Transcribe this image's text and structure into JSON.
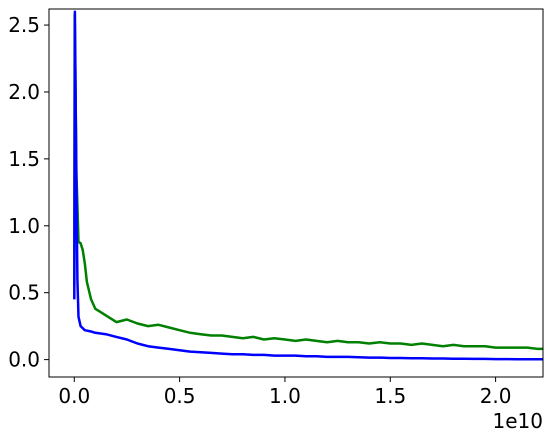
{
  "chart_data": {
    "type": "line",
    "title": "",
    "xlabel": "",
    "ylabel": "",
    "x_offset_text": "1e10",
    "xlim": [
      -0.12,
      2.225
    ],
    "ylim": [
      -0.13,
      2.62
    ],
    "x_ticks": [
      0.0,
      0.5,
      1.0,
      1.5,
      2.0
    ],
    "x_tick_labels": [
      "0.0",
      "0.5",
      "1.0",
      "1.5",
      "2.0"
    ],
    "y_ticks": [
      0.0,
      0.5,
      1.0,
      1.5,
      2.0,
      2.5
    ],
    "y_tick_labels": [
      "0.0",
      "0.5",
      "1.0",
      "1.5",
      "2.0",
      "2.5"
    ],
    "grid": false,
    "legend": "none",
    "series": [
      {
        "color": "#008000",
        "points": [
          [
            0.0,
            0.55
          ],
          [
            0.002,
            2.58
          ],
          [
            0.01,
            1.4
          ],
          [
            0.02,
            0.88
          ],
          [
            0.03,
            0.87
          ],
          [
            0.04,
            0.82
          ],
          [
            0.05,
            0.72
          ],
          [
            0.06,
            0.58
          ],
          [
            0.08,
            0.45
          ],
          [
            0.1,
            0.38
          ],
          [
            0.12,
            0.36
          ],
          [
            0.15,
            0.33
          ],
          [
            0.2,
            0.28
          ],
          [
            0.25,
            0.3
          ],
          [
            0.3,
            0.27
          ],
          [
            0.35,
            0.25
          ],
          [
            0.4,
            0.26
          ],
          [
            0.45,
            0.24
          ],
          [
            0.5,
            0.22
          ],
          [
            0.55,
            0.2
          ],
          [
            0.6,
            0.19
          ],
          [
            0.65,
            0.18
          ],
          [
            0.7,
            0.18
          ],
          [
            0.75,
            0.17
          ],
          [
            0.8,
            0.16
          ],
          [
            0.85,
            0.17
          ],
          [
            0.9,
            0.15
          ],
          [
            0.95,
            0.16
          ],
          [
            1.0,
            0.15
          ],
          [
            1.05,
            0.14
          ],
          [
            1.1,
            0.15
          ],
          [
            1.15,
            0.14
          ],
          [
            1.2,
            0.13
          ],
          [
            1.25,
            0.14
          ],
          [
            1.3,
            0.13
          ],
          [
            1.35,
            0.13
          ],
          [
            1.4,
            0.12
          ],
          [
            1.45,
            0.13
          ],
          [
            1.5,
            0.12
          ],
          [
            1.55,
            0.12
          ],
          [
            1.6,
            0.11
          ],
          [
            1.65,
            0.12
          ],
          [
            1.7,
            0.11
          ],
          [
            1.75,
            0.1
          ],
          [
            1.8,
            0.11
          ],
          [
            1.85,
            0.1
          ],
          [
            1.9,
            0.1
          ],
          [
            1.95,
            0.1
          ],
          [
            2.0,
            0.09
          ],
          [
            2.05,
            0.09
          ],
          [
            2.1,
            0.09
          ],
          [
            2.15,
            0.09
          ],
          [
            2.2,
            0.08
          ],
          [
            2.225,
            0.08
          ]
        ]
      },
      {
        "color": "#0000ff",
        "points": [
          [
            0.0,
            0.45
          ],
          [
            0.003,
            2.6
          ],
          [
            0.01,
            1.3
          ],
          [
            0.015,
            0.6
          ],
          [
            0.02,
            0.32
          ],
          [
            0.03,
            0.25
          ],
          [
            0.05,
            0.22
          ],
          [
            0.08,
            0.21
          ],
          [
            0.1,
            0.2
          ],
          [
            0.15,
            0.19
          ],
          [
            0.2,
            0.17
          ],
          [
            0.25,
            0.15
          ],
          [
            0.3,
            0.12
          ],
          [
            0.35,
            0.1
          ],
          [
            0.4,
            0.09
          ],
          [
            0.45,
            0.08
          ],
          [
            0.5,
            0.07
          ],
          [
            0.55,
            0.06
          ],
          [
            0.6,
            0.055
          ],
          [
            0.65,
            0.05
          ],
          [
            0.7,
            0.045
          ],
          [
            0.75,
            0.04
          ],
          [
            0.8,
            0.04
          ],
          [
            0.85,
            0.035
          ],
          [
            0.9,
            0.035
          ],
          [
            0.95,
            0.03
          ],
          [
            1.0,
            0.03
          ],
          [
            1.05,
            0.03
          ],
          [
            1.1,
            0.025
          ],
          [
            1.15,
            0.025
          ],
          [
            1.2,
            0.02
          ],
          [
            1.25,
            0.02
          ],
          [
            1.3,
            0.02
          ],
          [
            1.35,
            0.018
          ],
          [
            1.4,
            0.015
          ],
          [
            1.45,
            0.015
          ],
          [
            1.5,
            0.012
          ],
          [
            1.55,
            0.012
          ],
          [
            1.6,
            0.01
          ],
          [
            1.65,
            0.01
          ],
          [
            1.7,
            0.008
          ],
          [
            1.75,
            0.008
          ],
          [
            1.8,
            0.006
          ],
          [
            1.85,
            0.006
          ],
          [
            1.9,
            0.005
          ],
          [
            1.95,
            0.005
          ],
          [
            2.0,
            0.004
          ],
          [
            2.05,
            0.004
          ],
          [
            2.1,
            0.003
          ],
          [
            2.15,
            0.003
          ],
          [
            2.2,
            0.002
          ],
          [
            2.225,
            0.002
          ]
        ]
      }
    ]
  }
}
